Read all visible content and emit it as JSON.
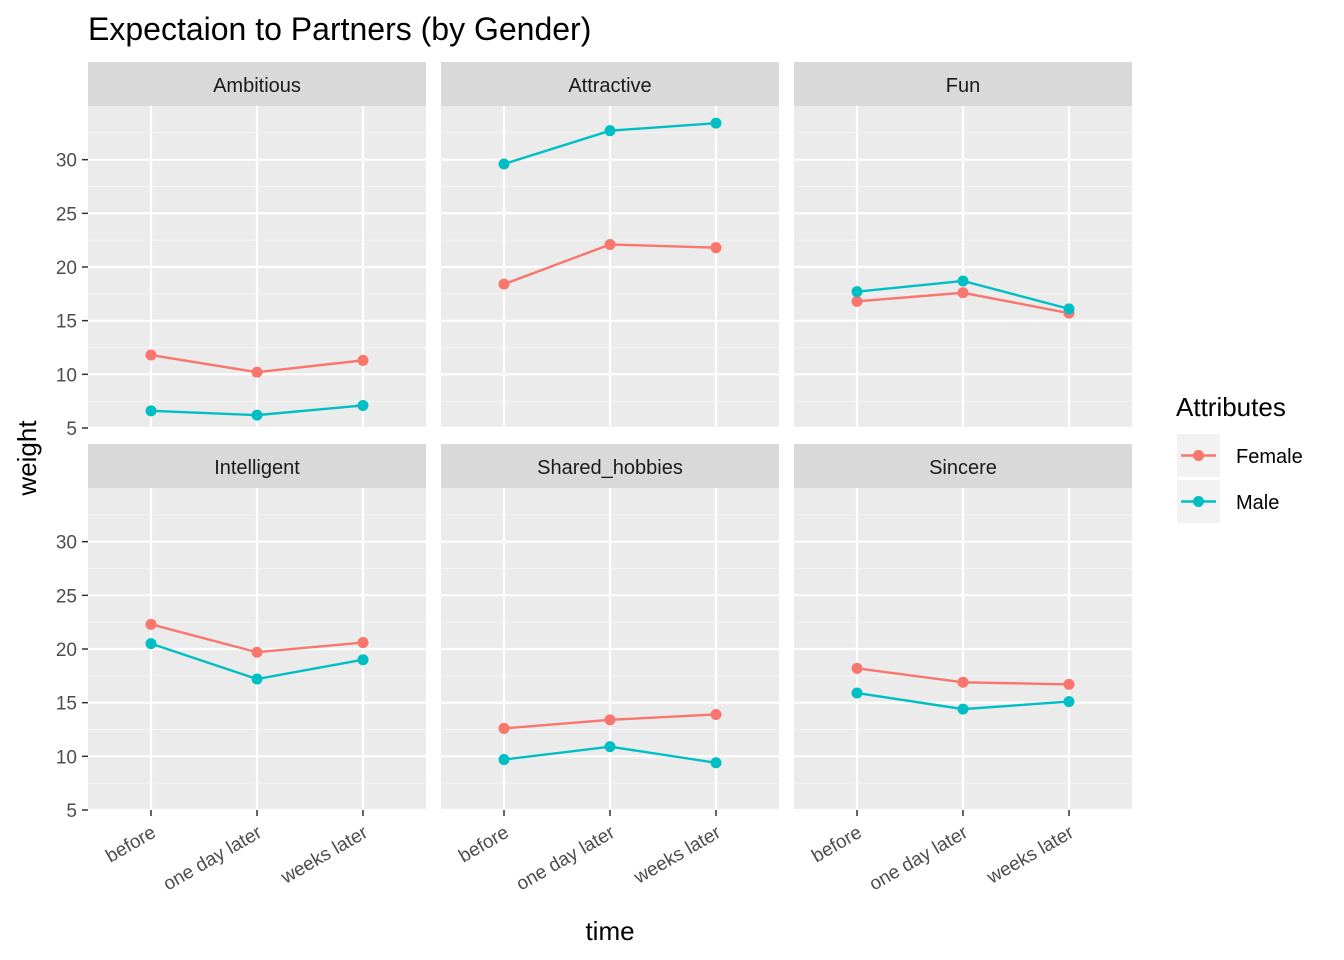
{
  "chart_data": {
    "type": "line",
    "title": "Expectaion to Partners (by Gender)",
    "xlabel": "time",
    "ylabel": "weight",
    "categories": [
      "before",
      "one day later",
      "weeks later"
    ],
    "y_ticks": [
      "5",
      "10",
      "15",
      "20",
      "25",
      "30"
    ],
    "ylim": [
      5,
      35
    ],
    "grid": true,
    "legend": {
      "title": "Attributes",
      "position": "right",
      "entries": [
        {
          "name": "Female",
          "color": "#F8766D"
        },
        {
          "name": "Male",
          "color": "#00BFC4"
        }
      ]
    },
    "facets": [
      {
        "label": "Ambitious",
        "series": [
          {
            "name": "Female",
            "values": [
              11.8,
              10.2,
              11.3
            ]
          },
          {
            "name": "Male",
            "values": [
              6.6,
              6.2,
              7.1
            ]
          }
        ]
      },
      {
        "label": "Attractive",
        "series": [
          {
            "name": "Female",
            "values": [
              18.4,
              22.1,
              21.8
            ]
          },
          {
            "name": "Male",
            "values": [
              29.6,
              32.7,
              33.4
            ]
          }
        ]
      },
      {
        "label": "Fun",
        "series": [
          {
            "name": "Female",
            "values": [
              16.8,
              17.6,
              15.7
            ]
          },
          {
            "name": "Male",
            "values": [
              17.7,
              18.7,
              16.1
            ]
          }
        ]
      },
      {
        "label": "Intelligent",
        "series": [
          {
            "name": "Female",
            "values": [
              22.3,
              19.7,
              20.6
            ]
          },
          {
            "name": "Male",
            "values": [
              20.5,
              17.2,
              19.0
            ]
          }
        ]
      },
      {
        "label": "Shared_hobbies",
        "series": [
          {
            "name": "Female",
            "values": [
              12.6,
              13.4,
              13.9
            ]
          },
          {
            "name": "Male",
            "values": [
              9.7,
              10.9,
              9.4
            ]
          }
        ]
      },
      {
        "label": "Sincere",
        "series": [
          {
            "name": "Female",
            "values": [
              18.2,
              16.9,
              16.7
            ]
          },
          {
            "name": "Male",
            "values": [
              15.9,
              14.4,
              15.1
            ]
          }
        ]
      }
    ]
  }
}
